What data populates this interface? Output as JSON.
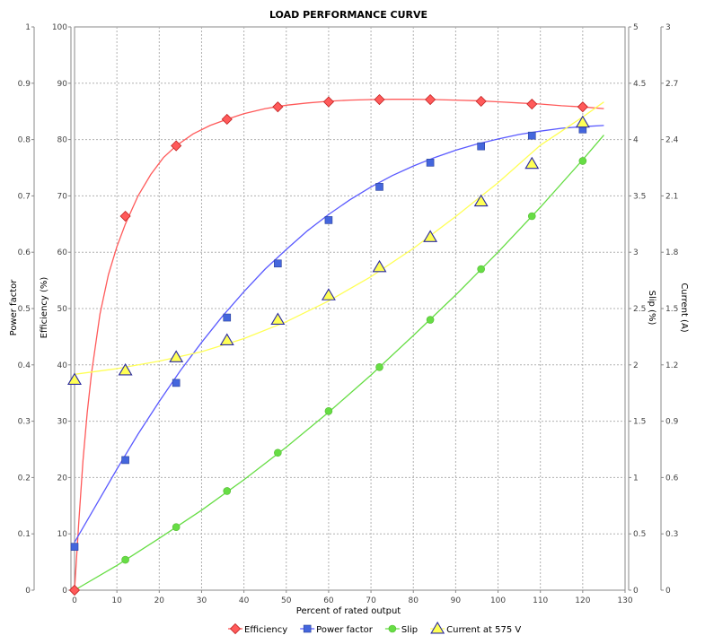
{
  "chart_data": {
    "type": "line",
    "title": "LOAD PERFORMANCE CURVE",
    "xlabel": "Percent of rated output",
    "xlim": [
      0,
      130
    ],
    "xticks": [
      0,
      10,
      20,
      30,
      40,
      50,
      60,
      70,
      80,
      90,
      100,
      110,
      120,
      130
    ],
    "grid": true,
    "legend_position": "bottom",
    "axes": {
      "power_factor": {
        "label": "Power factor",
        "side": "left-outer",
        "range": [
          0,
          1
        ],
        "ticks": [
          "0",
          "0.1",
          "0.2",
          "0.3",
          "0.4",
          "0.5",
          "0.6",
          "0.7",
          "0.8",
          "0.9",
          "1"
        ]
      },
      "efficiency": {
        "label": "Efficiency (%)",
        "side": "left-inner",
        "range": [
          0,
          100
        ],
        "ticks": [
          "0",
          "10",
          "20",
          "30",
          "40",
          "50",
          "60",
          "70",
          "80",
          "90",
          "100"
        ]
      },
      "slip": {
        "label": "Slip (%)",
        "side": "right-inner",
        "range": [
          0,
          5
        ],
        "ticks": [
          "0",
          "0.5",
          "1",
          "1.5",
          "2",
          "2.5",
          "3",
          "3.5",
          "4",
          "4.5",
          "5"
        ]
      },
      "current": {
        "label": "Current (A)",
        "side": "right-outer",
        "range": [
          0,
          3
        ],
        "ticks": [
          "0",
          "0.3",
          "0.6",
          "0.9",
          "1.2",
          "1.5",
          "1.8",
          "2.1",
          "2.4",
          "2.7",
          "3"
        ]
      }
    },
    "series": [
      {
        "name": "Efficiency",
        "axis": "efficiency",
        "color": "#ff5a5a",
        "marker": "diamond",
        "points": {
          "x": [
            0,
            12,
            24,
            36,
            48,
            60,
            72,
            84,
            96,
            108,
            120
          ],
          "y": [
            0,
            66.4,
            78.9,
            83.6,
            85.8,
            86.7,
            87.1,
            87.1,
            86.8,
            86.3,
            85.8
          ]
        },
        "curve": {
          "x": [
            0,
            1,
            2,
            3,
            4,
            6,
            8,
            10,
            12,
            15,
            18,
            21,
            24,
            28,
            32,
            36,
            40,
            45,
            50,
            55,
            60,
            65,
            70,
            75,
            80,
            85,
            90,
            95,
            100,
            105,
            110,
            115,
            120,
            125
          ],
          "y": [
            0,
            12,
            23,
            31.5,
            38.5,
            49,
            56,
            61,
            65,
            70,
            73.8,
            76.8,
            78.9,
            81,
            82.5,
            83.6,
            84.6,
            85.5,
            86.1,
            86.5,
            86.8,
            87.0,
            87.1,
            87.15,
            87.15,
            87.1,
            87.0,
            86.9,
            86.7,
            86.5,
            86.3,
            86.0,
            85.8,
            85.5
          ]
        }
      },
      {
        "name": "Power factor",
        "axis": "power_factor",
        "color": "#5a5aff",
        "marker": "square",
        "points": {
          "x": [
            0,
            12,
            24,
            36,
            48,
            60,
            72,
            84,
            96,
            108,
            120
          ],
          "y": [
            0.077,
            0.231,
            0.368,
            0.484,
            0.58,
            0.657,
            0.716,
            0.759,
            0.788,
            0.807,
            0.818
          ]
        },
        "curve": {
          "x": [
            0,
            5,
            10,
            15,
            20,
            25,
            30,
            35,
            40,
            45,
            50,
            55,
            60,
            65,
            70,
            75,
            80,
            85,
            90,
            95,
            100,
            105,
            110,
            115,
            120,
            125
          ],
          "y": [
            0.085,
            0.15,
            0.215,
            0.277,
            0.335,
            0.39,
            0.44,
            0.487,
            0.53,
            0.57,
            0.605,
            0.638,
            0.667,
            0.693,
            0.716,
            0.736,
            0.753,
            0.768,
            0.781,
            0.792,
            0.801,
            0.809,
            0.815,
            0.82,
            0.823,
            0.825
          ]
        }
      },
      {
        "name": "Slip",
        "axis": "slip",
        "color": "#66dd44",
        "marker": "circle",
        "points": {
          "x": [
            0,
            12,
            24,
            36,
            48,
            60,
            72,
            84,
            96,
            108,
            120
          ],
          "y": [
            0,
            0.27,
            0.56,
            0.88,
            1.22,
            1.59,
            1.98,
            2.4,
            2.85,
            3.32,
            3.81
          ]
        },
        "curve": {
          "x": [
            0,
            10,
            20,
            30,
            40,
            50,
            60,
            70,
            80,
            90,
            100,
            110,
            120,
            125
          ],
          "y": [
            0,
            0.22,
            0.46,
            0.71,
            0.98,
            1.27,
            1.58,
            1.91,
            2.26,
            2.62,
            3.0,
            3.4,
            3.82,
            4.04
          ]
        }
      },
      {
        "name": "Current at 575 V",
        "axis": "current",
        "color": "#ffff55",
        "marker": "triangle",
        "points": {
          "x": [
            0,
            12,
            24,
            36,
            48,
            60,
            72,
            84,
            96,
            108,
            120
          ],
          "y": [
            1.12,
            1.17,
            1.24,
            1.33,
            1.44,
            1.57,
            1.72,
            1.88,
            2.07,
            2.27,
            2.49
          ]
        },
        "curve": {
          "x": [
            0,
            10,
            20,
            30,
            40,
            50,
            60,
            70,
            80,
            90,
            100,
            110,
            120,
            125
          ],
          "y": [
            1.15,
            1.18,
            1.22,
            1.27,
            1.34,
            1.43,
            1.54,
            1.67,
            1.82,
            1.99,
            2.17,
            2.37,
            2.52,
            2.6
          ]
        }
      }
    ]
  }
}
